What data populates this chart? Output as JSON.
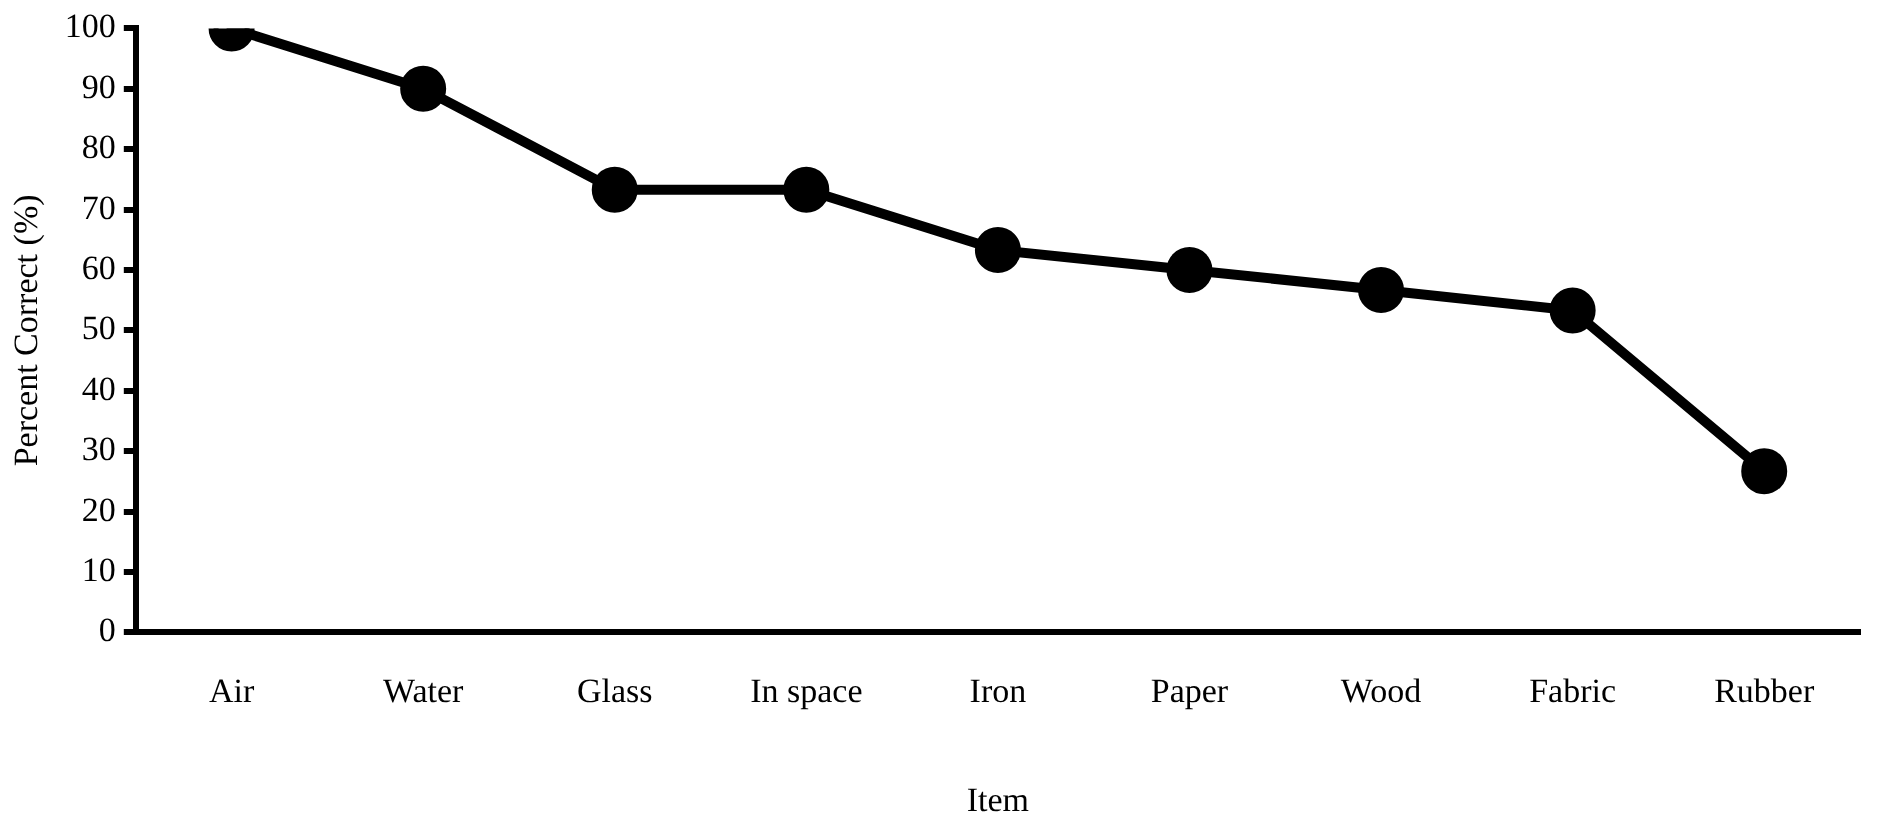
{
  "chart_data": {
    "type": "line",
    "xlabel": "Item",
    "ylabel": "Percent Correct (%)",
    "categories": [
      "Air",
      "Water",
      "Glass",
      "In space",
      "Iron",
      "Paper",
      "Wood",
      "Fabric",
      "Rubber"
    ],
    "series": [
      {
        "color": "#000000",
        "values": [
          100,
          90,
          73.3,
          73.3,
          63.3,
          60,
          56.7,
          53.3,
          26.7
        ]
      }
    ],
    "ylim": [
      0,
      100
    ],
    "yticks": [
      0,
      10,
      20,
      30,
      40,
      50,
      60,
      70,
      80,
      90,
      100
    ],
    "grid": false,
    "legend": false,
    "marker": "circle",
    "line_style": "solid"
  }
}
